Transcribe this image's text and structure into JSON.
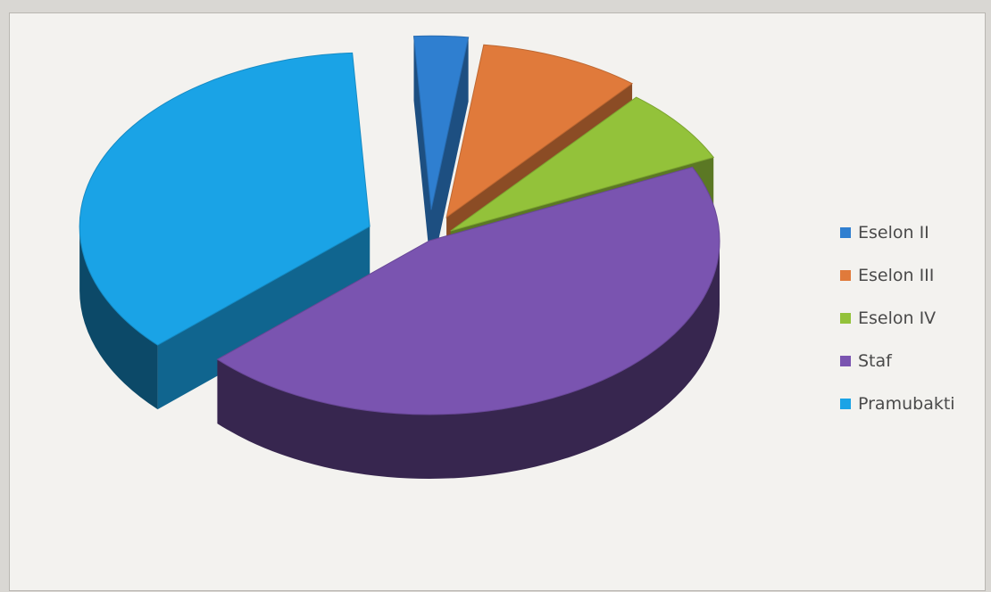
{
  "chart_data": {
    "type": "pie",
    "categories": [
      "Eselon II",
      "Eselon III",
      "Eselon IV",
      "Staf",
      "Pramubakti"
    ],
    "values": [
      3,
      9,
      7,
      45,
      36
    ],
    "unit": "",
    "legend": "right",
    "colors": [
      "#2f7fd0",
      "#e07a3b",
      "#93c23a",
      "#7a54b0",
      "#1aa3e6"
    ]
  }
}
